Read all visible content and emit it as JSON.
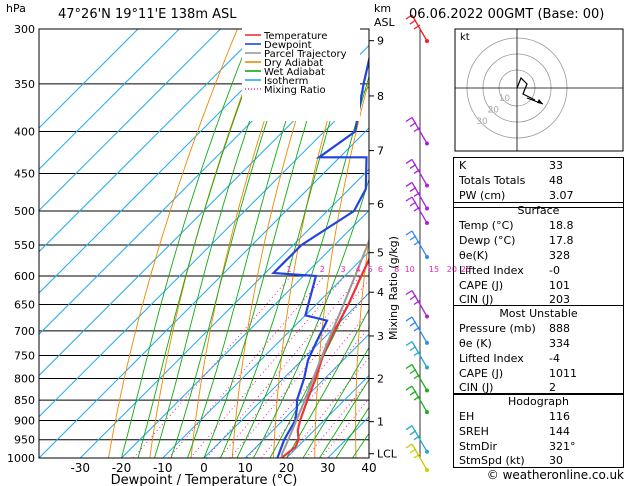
{
  "header": {
    "hpa_unit": "hPa",
    "location": "47°26'N  19°11'E  138m  ASL",
    "km_unit": "km",
    "asl": "ASL",
    "datetime": "06.06.2022  00GMT  (Base: 00)"
  },
  "chart_data": {
    "type": "line",
    "subtype": "skew-T log-P diagram",
    "xlabel": "Dewpoint / Temperature (°C)",
    "x_ticks": [
      -30,
      -20,
      -10,
      0,
      10,
      20,
      30,
      40
    ],
    "x_range": [
      -40,
      40
    ],
    "y_unit": "hPa",
    "y_ticks": [
      300,
      350,
      400,
      450,
      500,
      550,
      600,
      650,
      700,
      750,
      800,
      850,
      900,
      950,
      1000
    ],
    "y_scale": "log",
    "y_range": [
      1000,
      300
    ],
    "km_ticks": [
      {
        "label": "9",
        "p": 310
      },
      {
        "label": "8",
        "p": 362
      },
      {
        "label": "7",
        "p": 422
      },
      {
        "label": "6",
        "p": 490
      },
      {
        "label": "5",
        "p": 562
      },
      {
        "label": "4",
        "p": 628
      },
      {
        "label": "3",
        "p": 710
      },
      {
        "label": "2",
        "p": 800
      },
      {
        "label": "1",
        "p": 903
      },
      {
        "label": "LCL",
        "p": 988
      }
    ],
    "mixing_ratio_label": "Mixing Ratio (g/kg)",
    "mixing_ratio_values": [
      "1",
      "2",
      "3",
      "4",
      "5",
      "6",
      "8",
      "10",
      "15",
      "20",
      "25"
    ],
    "legend_placement": "top-left",
    "legend": [
      {
        "name": "Temperature",
        "color": "#ee3333",
        "style": "solid"
      },
      {
        "name": "Dewpoint",
        "color": "#2244dd",
        "style": "solid"
      },
      {
        "name": "Parcel Trajectory",
        "color": "#999999",
        "style": "solid"
      },
      {
        "name": "Dry Adiabat",
        "color": "#ee8800",
        "style": "solid"
      },
      {
        "name": "Wet Adiabat",
        "color": "#11aa11",
        "style": "solid"
      },
      {
        "name": "Isotherm",
        "color": "#22aaee",
        "style": "solid"
      },
      {
        "name": "Mixing Ratio",
        "color": "#ee22aa",
        "style": "dotted"
      }
    ],
    "series": [
      {
        "name": "Temperature",
        "color": "#ee3333",
        "points": [
          {
            "p": 1000,
            "t": 18.8
          },
          {
            "p": 970,
            "t": 19.5
          },
          {
            "p": 950,
            "t": 18.5
          },
          {
            "p": 925,
            "t": 16.0
          },
          {
            "p": 900,
            "t": 14.2
          },
          {
            "p": 850,
            "t": 11.0
          },
          {
            "p": 800,
            "t": 7.8
          },
          {
            "p": 750,
            "t": 4.0
          },
          {
            "p": 700,
            "t": 0.8
          },
          {
            "p": 650,
            "t": -2.2
          },
          {
            "p": 600,
            "t": -6.0
          },
          {
            "p": 550,
            "t": -10.0
          },
          {
            "p": 500,
            "t": -15.0
          },
          {
            "p": 450,
            "t": -21.0
          },
          {
            "p": 400,
            "t": -27.5
          },
          {
            "p": 350,
            "t": -35.5
          },
          {
            "p": 300,
            "t": -44.0
          }
        ]
      },
      {
        "name": "Dewpoint",
        "color": "#2244dd",
        "points": [
          {
            "p": 1000,
            "t": 17.8
          },
          {
            "p": 950,
            "t": 15.0
          },
          {
            "p": 900,
            "t": 13.0
          },
          {
            "p": 870,
            "t": 10.5
          },
          {
            "p": 850,
            "t": 8.5
          },
          {
            "p": 800,
            "t": 5.0
          },
          {
            "p": 760,
            "t": 1.5
          },
          {
            "p": 720,
            "t": -1.0
          },
          {
            "p": 680,
            "t": -3.5
          },
          {
            "p": 670,
            "t": -10.0
          },
          {
            "p": 600,
            "t": -17.0
          },
          {
            "p": 595,
            "t": -28.0
          },
          {
            "p": 550,
            "t": -28.0
          },
          {
            "p": 500,
            "t": -23.5
          },
          {
            "p": 470,
            "t": -26.0
          },
          {
            "p": 430,
            "t": -33.5
          },
          {
            "p": 430,
            "t": -45.0
          },
          {
            "p": 400,
            "t": -42.5
          },
          {
            "p": 350,
            "t": -52.0
          },
          {
            "p": 320,
            "t": -58.0
          },
          {
            "p": 300,
            "t": -48.0
          }
        ]
      },
      {
        "name": "Parcel Trajectory",
        "color": "#999999",
        "points": [
          {
            "p": 1000,
            "t": 18.8
          },
          {
            "p": 988,
            "t": 17.9
          },
          {
            "p": 950,
            "t": 16.0
          },
          {
            "p": 900,
            "t": 13.3
          },
          {
            "p": 850,
            "t": 10.4
          },
          {
            "p": 800,
            "t": 7.2
          },
          {
            "p": 750,
            "t": 3.8
          },
          {
            "p": 700,
            "t": 0.3
          },
          {
            "p": 650,
            "t": -3.4
          },
          {
            "p": 600,
            "t": -7.5
          },
          {
            "p": 550,
            "t": -12.0
          },
          {
            "p": 500,
            "t": -17.3
          },
          {
            "p": 450,
            "t": -23.3
          },
          {
            "p": 400,
            "t": -30.3
          },
          {
            "p": 350,
            "t": -38.5
          },
          {
            "p": 300,
            "t": -48.0
          }
        ]
      }
    ]
  },
  "hodograph": {
    "unit": "kt",
    "ring_labels": [
      "10",
      "20",
      "30"
    ]
  },
  "indices": [
    {
      "label": "K",
      "value": "33"
    },
    {
      "label": "Totals Totals",
      "value": "48"
    },
    {
      "label": "PW (cm)",
      "value": "3.07"
    }
  ],
  "surface": {
    "title": "Surface",
    "rows": [
      {
        "label": "Temp (°C)",
        "value": "18.8"
      },
      {
        "label": "Dewp (°C)",
        "value": "17.8"
      },
      {
        "label": "θe(K)",
        "value": "328"
      },
      {
        "label": "Lifted Index",
        "value": "-0"
      },
      {
        "label": "CAPE (J)",
        "value": "101"
      },
      {
        "label": "CIN (J)",
        "value": "203"
      }
    ]
  },
  "most_unstable": {
    "title": "Most Unstable",
    "rows": [
      {
        "label": "Pressure (mb)",
        "value": "888"
      },
      {
        "label": "θe (K)",
        "value": "334"
      },
      {
        "label": "Lifted Index",
        "value": "-4"
      },
      {
        "label": "CAPE (J)",
        "value": "1011"
      },
      {
        "label": "CIN (J)",
        "value": "2"
      }
    ]
  },
  "hodograph_table": {
    "title": "Hodograph",
    "rows": [
      {
        "label": "EH",
        "value": "116"
      },
      {
        "label": "SREH",
        "value": "144"
      },
      {
        "label": "StmDir",
        "value": "321°"
      },
      {
        "label": "StmSpd (kt)",
        "value": "30"
      }
    ]
  },
  "footer": {
    "copyright": "© weatheronline.co.uk"
  },
  "wind_barbs": [
    {
      "p": 300,
      "color": "#ee2222"
    },
    {
      "p": 400,
      "color": "#aa22dd"
    },
    {
      "p": 450,
      "color": "#aa22dd"
    },
    {
      "p": 480,
      "color": "#aa22dd"
    },
    {
      "p": 500,
      "color": "#aa22dd"
    },
    {
      "p": 550,
      "color": "#3388ee"
    },
    {
      "p": 650,
      "color": "#aa22dd"
    },
    {
      "p": 700,
      "color": "#3388ee"
    },
    {
      "p": 750,
      "color": "#22aacc"
    },
    {
      "p": 800,
      "color": "#22aa22"
    },
    {
      "p": 850,
      "color": "#22aa22"
    },
    {
      "p": 950,
      "color": "#22aacc"
    },
    {
      "p": 1000,
      "color": "#cccc00"
    }
  ]
}
